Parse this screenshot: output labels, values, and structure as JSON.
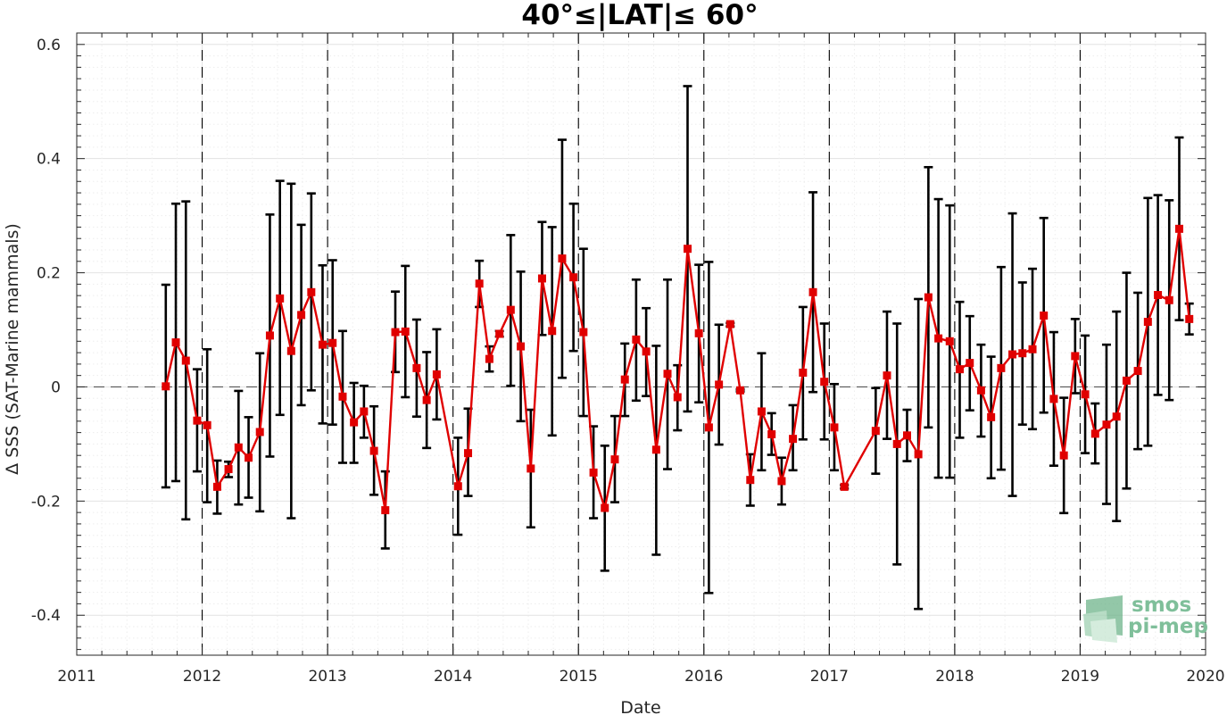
{
  "chart_data": {
    "type": "line",
    "title": "40°≤|LAT|≤ 60°",
    "xlabel": "Date",
    "ylabel": "Δ SSS (SAT-Marine mammals)",
    "xlim": [
      2011,
      2020
    ],
    "ylim": [
      -0.47,
      0.62
    ],
    "x_ticks": [
      2011,
      2012,
      2013,
      2014,
      2015,
      2016,
      2017,
      2018,
      2019,
      2020
    ],
    "x_tick_labels": [
      "2011",
      "2012",
      "2013",
      "2014",
      "2015",
      "2016",
      "2017",
      "2018",
      "2019",
      "2020"
    ],
    "y_ticks": [
      -0.4,
      -0.2,
      0,
      0.2,
      0.4,
      0.6
    ],
    "y_tick_labels": [
      "-0.4",
      "-0.2",
      "0",
      "0.2",
      "0.4",
      "0.6"
    ],
    "grid": true,
    "year_separators": [
      2012,
      2013,
      2014,
      2015,
      2016,
      2017,
      2018,
      2019
    ],
    "zero_line": 0,
    "series": [
      {
        "color": "#e00000",
        "marker": "square",
        "errorbar_color": "#000000",
        "points": [
          {
            "x": 2011.71,
            "y": 0.001,
            "lo": -0.176,
            "hi": 0.179
          },
          {
            "x": 2011.79,
            "y": 0.078,
            "lo": -0.165,
            "hi": 0.321
          },
          {
            "x": 2011.87,
            "y": 0.046,
            "lo": -0.232,
            "hi": 0.325
          },
          {
            "x": 2011.96,
            "y": -0.059,
            "lo": -0.148,
            "hi": 0.031
          },
          {
            "x": 2012.04,
            "y": -0.067,
            "lo": -0.202,
            "hi": 0.066
          },
          {
            "x": 2012.12,
            "y": -0.175,
            "lo": -0.222,
            "hi": -0.129
          },
          {
            "x": 2012.21,
            "y": -0.144,
            "lo": -0.158,
            "hi": -0.131
          },
          {
            "x": 2012.29,
            "y": -0.106,
            "lo": -0.206,
            "hi": -0.007
          },
          {
            "x": 2012.37,
            "y": -0.124,
            "lo": -0.194,
            "hi": -0.053
          },
          {
            "x": 2012.46,
            "y": -0.079,
            "lo": -0.218,
            "hi": 0.059
          },
          {
            "x": 2012.54,
            "y": 0.09,
            "lo": -0.122,
            "hi": 0.302
          },
          {
            "x": 2012.62,
            "y": 0.155,
            "lo": -0.049,
            "hi": 0.361
          },
          {
            "x": 2012.71,
            "y": 0.063,
            "lo": -0.23,
            "hi": 0.356
          },
          {
            "x": 2012.79,
            "y": 0.126,
            "lo": -0.032,
            "hi": 0.284
          },
          {
            "x": 2012.87,
            "y": 0.166,
            "lo": -0.006,
            "hi": 0.339
          },
          {
            "x": 2012.96,
            "y": 0.074,
            "lo": -0.064,
            "hi": 0.213
          },
          {
            "x": 2013.04,
            "y": 0.077,
            "lo": -0.066,
            "hi": 0.222
          },
          {
            "x": 2013.12,
            "y": -0.017,
            "lo": -0.133,
            "hi": 0.098
          },
          {
            "x": 2013.21,
            "y": -0.062,
            "lo": -0.133,
            "hi": 0.007
          },
          {
            "x": 2013.29,
            "y": -0.043,
            "lo": -0.089,
            "hi": 0.002
          },
          {
            "x": 2013.37,
            "y": -0.112,
            "lo": -0.189,
            "hi": -0.034
          },
          {
            "x": 2013.46,
            "y": -0.216,
            "lo": -0.283,
            "hi": -0.148
          },
          {
            "x": 2013.54,
            "y": 0.096,
            "lo": 0.026,
            "hi": 0.167
          },
          {
            "x": 2013.62,
            "y": 0.097,
            "lo": -0.018,
            "hi": 0.212
          },
          {
            "x": 2013.71,
            "y": 0.033,
            "lo": -0.052,
            "hi": 0.118
          },
          {
            "x": 2013.79,
            "y": -0.023,
            "lo": -0.107,
            "hi": 0.061
          },
          {
            "x": 2013.87,
            "y": 0.022,
            "lo": -0.057,
            "hi": 0.101
          },
          {
            "x": 2014.04,
            "y": -0.174,
            "lo": -0.259,
            "hi": -0.089
          },
          {
            "x": 2014.12,
            "y": -0.116,
            "lo": -0.191,
            "hi": -0.038
          },
          {
            "x": 2014.21,
            "y": 0.181,
            "lo": 0.14,
            "hi": 0.221
          },
          {
            "x": 2014.29,
            "y": 0.049,
            "lo": 0.027,
            "hi": 0.071
          },
          {
            "x": 2014.37,
            "y": 0.093,
            "lo": 0.088,
            "hi": 0.098
          },
          {
            "x": 2014.46,
            "y": 0.135,
            "lo": 0.002,
            "hi": 0.266
          },
          {
            "x": 2014.54,
            "y": 0.071,
            "lo": -0.06,
            "hi": 0.202
          },
          {
            "x": 2014.62,
            "y": -0.143,
            "lo": -0.246,
            "hi": -0.04
          },
          {
            "x": 2014.71,
            "y": 0.19,
            "lo": 0.091,
            "hi": 0.289
          },
          {
            "x": 2014.79,
            "y": 0.098,
            "lo": -0.085,
            "hi": 0.28
          },
          {
            "x": 2014.87,
            "y": 0.225,
            "lo": 0.016,
            "hi": 0.433
          },
          {
            "x": 2014.96,
            "y": 0.192,
            "lo": 0.063,
            "hi": 0.321
          },
          {
            "x": 2015.04,
            "y": 0.096,
            "lo": -0.051,
            "hi": 0.242
          },
          {
            "x": 2015.12,
            "y": -0.15,
            "lo": -0.23,
            "hi": -0.069
          },
          {
            "x": 2015.21,
            "y": -0.212,
            "lo": -0.322,
            "hi": -0.103
          },
          {
            "x": 2015.29,
            "y": -0.127,
            "lo": -0.202,
            "hi": -0.051
          },
          {
            "x": 2015.37,
            "y": 0.013,
            "lo": -0.051,
            "hi": 0.076
          },
          {
            "x": 2015.46,
            "y": 0.083,
            "lo": -0.024,
            "hi": 0.188
          },
          {
            "x": 2015.54,
            "y": 0.062,
            "lo": -0.016,
            "hi": 0.138
          },
          {
            "x": 2015.62,
            "y": -0.11,
            "lo": -0.294,
            "hi": 0.072
          },
          {
            "x": 2015.71,
            "y": 0.023,
            "lo": -0.144,
            "hi": 0.188
          },
          {
            "x": 2015.79,
            "y": -0.018,
            "lo": -0.076,
            "hi": 0.038
          },
          {
            "x": 2015.87,
            "y": 0.242,
            "lo": -0.043,
            "hi": 0.527
          },
          {
            "x": 2015.96,
            "y": 0.094,
            "lo": -0.027,
            "hi": 0.214
          },
          {
            "x": 2016.04,
            "y": -0.071,
            "lo": -0.361,
            "hi": 0.219
          },
          {
            "x": 2016.12,
            "y": 0.004,
            "lo": -0.101,
            "hi": 0.109
          },
          {
            "x": 2016.21,
            "y": 0.11,
            "lo": 0.106,
            "hi": 0.112
          },
          {
            "x": 2016.29,
            "y": -0.006,
            "lo": -0.008,
            "hi": -0.004
          },
          {
            "x": 2016.37,
            "y": -0.163,
            "lo": -0.208,
            "hi": -0.118
          },
          {
            "x": 2016.46,
            "y": -0.043,
            "lo": -0.146,
            "hi": 0.059
          },
          {
            "x": 2016.54,
            "y": -0.083,
            "lo": -0.119,
            "hi": -0.046
          },
          {
            "x": 2016.62,
            "y": -0.165,
            "lo": -0.206,
            "hi": -0.124
          },
          {
            "x": 2016.71,
            "y": -0.091,
            "lo": -0.146,
            "hi": -0.032
          },
          {
            "x": 2016.79,
            "y": 0.025,
            "lo": -0.092,
            "hi": 0.14
          },
          {
            "x": 2016.87,
            "y": 0.166,
            "lo": -0.009,
            "hi": 0.341
          },
          {
            "x": 2016.96,
            "y": 0.009,
            "lo": -0.092,
            "hi": 0.111
          },
          {
            "x": 2017.04,
            "y": -0.071,
            "lo": -0.146,
            "hi": 0.005
          },
          {
            "x": 2017.12,
            "y": -0.175,
            "lo": -0.178,
            "hi": -0.172
          },
          {
            "x": 2017.37,
            "y": -0.077,
            "lo": -0.152,
            "hi": -0.002
          },
          {
            "x": 2017.46,
            "y": 0.02,
            "lo": -0.091,
            "hi": 0.132
          },
          {
            "x": 2017.54,
            "y": -0.1,
            "lo": -0.311,
            "hi": 0.111
          },
          {
            "x": 2017.62,
            "y": -0.085,
            "lo": -0.13,
            "hi": -0.04
          },
          {
            "x": 2017.71,
            "y": -0.118,
            "lo": -0.389,
            "hi": 0.154
          },
          {
            "x": 2017.79,
            "y": 0.157,
            "lo": -0.071,
            "hi": 0.385
          },
          {
            "x": 2017.87,
            "y": 0.085,
            "lo": -0.159,
            "hi": 0.329
          },
          {
            "x": 2017.96,
            "y": 0.08,
            "lo": -0.159,
            "hi": 0.318
          },
          {
            "x": 2018.04,
            "y": 0.031,
            "lo": -0.089,
            "hi": 0.149
          },
          {
            "x": 2018.12,
            "y": 0.042,
            "lo": -0.041,
            "hi": 0.124
          },
          {
            "x": 2018.21,
            "y": -0.006,
            "lo": -0.087,
            "hi": 0.074
          },
          {
            "x": 2018.29,
            "y": -0.053,
            "lo": -0.16,
            "hi": 0.053
          },
          {
            "x": 2018.37,
            "y": 0.033,
            "lo": -0.145,
            "hi": 0.21
          },
          {
            "x": 2018.46,
            "y": 0.057,
            "lo": -0.191,
            "hi": 0.304
          },
          {
            "x": 2018.54,
            "y": 0.059,
            "lo": -0.066,
            "hi": 0.183
          },
          {
            "x": 2018.62,
            "y": 0.066,
            "lo": -0.074,
            "hi": 0.207
          },
          {
            "x": 2018.71,
            "y": 0.125,
            "lo": -0.045,
            "hi": 0.296
          },
          {
            "x": 2018.79,
            "y": -0.021,
            "lo": -0.138,
            "hi": 0.096
          },
          {
            "x": 2018.87,
            "y": -0.12,
            "lo": -0.221,
            "hi": -0.019
          },
          {
            "x": 2018.96,
            "y": 0.054,
            "lo": -0.011,
            "hi": 0.119
          },
          {
            "x": 2019.04,
            "y": -0.013,
            "lo": -0.116,
            "hi": 0.09
          },
          {
            "x": 2019.12,
            "y": -0.082,
            "lo": -0.134,
            "hi": -0.029
          },
          {
            "x": 2019.21,
            "y": -0.066,
            "lo": -0.205,
            "hi": 0.074
          },
          {
            "x": 2019.29,
            "y": -0.052,
            "lo": -0.235,
            "hi": 0.132
          },
          {
            "x": 2019.37,
            "y": 0.011,
            "lo": -0.178,
            "hi": 0.2
          },
          {
            "x": 2019.46,
            "y": 0.028,
            "lo": -0.109,
            "hi": 0.165
          },
          {
            "x": 2019.54,
            "y": 0.114,
            "lo": -0.103,
            "hi": 0.331
          },
          {
            "x": 2019.62,
            "y": 0.161,
            "lo": -0.014,
            "hi": 0.336
          },
          {
            "x": 2019.71,
            "y": 0.152,
            "lo": -0.023,
            "hi": 0.327
          },
          {
            "x": 2019.79,
            "y": 0.277,
            "lo": 0.117,
            "hi": 0.437
          },
          {
            "x": 2019.87,
            "y": 0.119,
            "lo": 0.092,
            "hi": 0.146
          }
        ]
      }
    ]
  },
  "logo": {
    "line1": "smos",
    "line2": "pi-mep",
    "color": "#7fbf9a"
  }
}
